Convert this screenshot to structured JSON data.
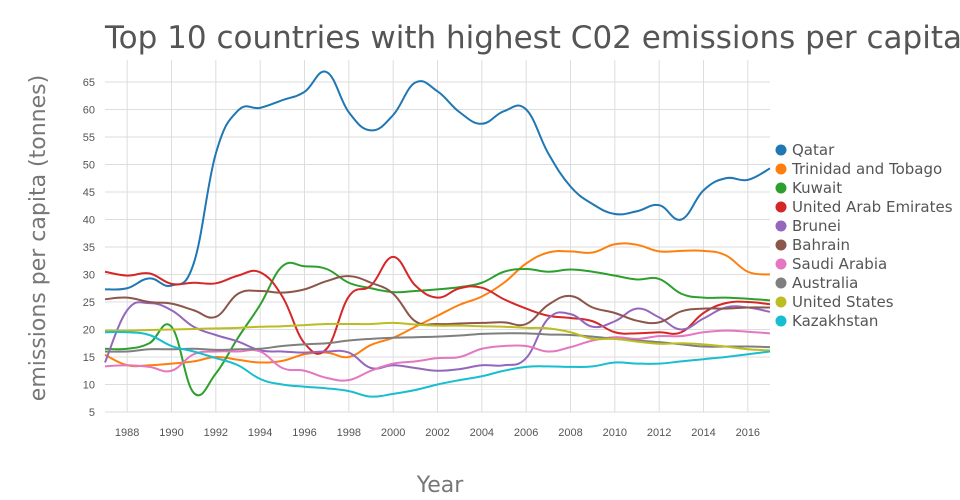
{
  "chart_data": {
    "type": "line",
    "title": "Top 10 countries with highest C02 emissions per capita",
    "xlabel": "Year",
    "ylabel": "emissions per capita (tonnes)",
    "xlim": [
      1987,
      2017
    ],
    "ylim": [
      5,
      69
    ],
    "xticks": [
      1988,
      1990,
      1992,
      1994,
      1996,
      1998,
      2000,
      2002,
      2004,
      2006,
      2008,
      2010,
      2012,
      2014,
      2016
    ],
    "yticks": [
      5,
      10,
      15,
      20,
      25,
      30,
      35,
      40,
      45,
      50,
      55,
      60,
      65
    ],
    "grid": true,
    "legend_position": "right",
    "x": [
      1987,
      1988,
      1989,
      1990,
      1991,
      1992,
      1993,
      1994,
      1995,
      1996,
      1997,
      1998,
      1999,
      2000,
      2001,
      2002,
      2003,
      2004,
      2005,
      2006,
      2007,
      2008,
      2009,
      2010,
      2011,
      2012,
      2013,
      2014,
      2015,
      2016,
      2017
    ],
    "series": [
      {
        "name": "Qatar",
        "color": "#1f77b4",
        "values": [
          27.3,
          27.5,
          29.3,
          28.0,
          32.0,
          52.0,
          59.8,
          60.3,
          61.7,
          63.2,
          66.8,
          59.5,
          56.2,
          59.0,
          64.9,
          63.3,
          59.5,
          57.4,
          59.7,
          60.0,
          52.0,
          46.0,
          42.8,
          41.0,
          41.5,
          42.6,
          40.0,
          45.3,
          47.5,
          47.2,
          49.3
        ]
      },
      {
        "name": "Trinidad and Tobago",
        "color": "#ff7f0e",
        "values": [
          15.4,
          13.5,
          13.5,
          13.8,
          14.2,
          15.0,
          14.5,
          14.0,
          14.3,
          15.5,
          15.8,
          15.0,
          17.2,
          18.5,
          20.5,
          22.5,
          24.5,
          26.0,
          28.5,
          32.0,
          34.0,
          34.2,
          34.0,
          35.5,
          35.4,
          34.2,
          34.3,
          34.3,
          33.5,
          30.5,
          30.0
        ]
      },
      {
        "name": "Kuwait",
        "color": "#2ca02c",
        "values": [
          16.5,
          16.5,
          17.5,
          20.5,
          8.5,
          12.0,
          18.5,
          24.5,
          31.5,
          31.5,
          31.0,
          28.5,
          27.5,
          26.8,
          27.0,
          27.3,
          27.7,
          28.5,
          30.5,
          31.0,
          30.5,
          30.9,
          30.5,
          29.8,
          29.1,
          29.2,
          26.5,
          25.8,
          25.8,
          25.6,
          25.3
        ]
      },
      {
        "name": "United Arab Emirates",
        "color": "#d62728",
        "values": [
          30.5,
          29.8,
          30.2,
          28.3,
          28.5,
          28.4,
          29.8,
          30.4,
          26.0,
          17.5,
          16.5,
          26.0,
          28.0,
          33.2,
          28.0,
          25.8,
          27.5,
          27.6,
          25.5,
          23.8,
          22.5,
          22.1,
          21.5,
          19.5,
          19.3,
          19.5,
          19.5,
          23.0,
          24.8,
          25.0,
          24.6
        ]
      },
      {
        "name": "Brunei",
        "color": "#9467bd",
        "values": [
          14.0,
          23.5,
          24.8,
          23.5,
          20.5,
          19.0,
          17.8,
          16.2,
          16.0,
          15.8,
          16.0,
          15.8,
          13.0,
          13.5,
          13.0,
          12.5,
          12.8,
          13.5,
          13.5,
          14.8,
          22.0,
          22.8,
          20.5,
          21.5,
          23.8,
          22.2,
          20.0,
          22.0,
          24.0,
          24.0,
          23.2
        ]
      },
      {
        "name": "Bahrain",
        "color": "#8c564b",
        "values": [
          25.5,
          25.8,
          25.0,
          24.7,
          23.5,
          22.3,
          26.5,
          27.0,
          26.7,
          27.3,
          28.8,
          29.7,
          28.5,
          26.5,
          21.5,
          21.0,
          21.1,
          21.2,
          21.3,
          21.0,
          24.5,
          26.1,
          24.0,
          23.0,
          21.6,
          21.3,
          23.3,
          23.8,
          23.8,
          24.0,
          24.0
        ]
      },
      {
        "name": "Saudi Arabia",
        "color": "#e377c2",
        "values": [
          13.3,
          13.5,
          13.2,
          12.5,
          15.5,
          16.0,
          16.0,
          16.0,
          13.0,
          12.5,
          11.2,
          10.8,
          12.5,
          13.8,
          14.2,
          14.8,
          15.0,
          16.5,
          17.0,
          17.0,
          16.0,
          16.8,
          18.0,
          18.6,
          18.3,
          18.8,
          18.8,
          19.5,
          19.8,
          19.6,
          19.3
        ]
      },
      {
        "name": "Australia",
        "color": "#7f7f7f",
        "values": [
          16.0,
          16.0,
          16.4,
          16.4,
          16.5,
          16.3,
          16.4,
          16.5,
          17.0,
          17.3,
          17.5,
          18.0,
          18.3,
          18.5,
          18.6,
          18.7,
          18.9,
          19.2,
          19.3,
          19.3,
          19.1,
          19.0,
          18.7,
          18.3,
          18.0,
          17.7,
          17.3,
          16.9,
          16.9,
          16.9,
          16.8
        ]
      },
      {
        "name": "United States",
        "color": "#bcbd22",
        "values": [
          19.8,
          19.8,
          19.9,
          20.0,
          20.1,
          20.2,
          20.3,
          20.5,
          20.6,
          20.8,
          21.0,
          21.0,
          21.0,
          21.2,
          20.9,
          20.7,
          20.7,
          20.6,
          20.5,
          20.3,
          20.2,
          19.5,
          18.3,
          18.3,
          17.8,
          17.4,
          17.5,
          17.3,
          16.9,
          16.4,
          16.2
        ]
      },
      {
        "name": "Kazakhstan",
        "color": "#17becf",
        "values": [
          19.5,
          19.5,
          19.0,
          17.0,
          16.0,
          14.8,
          13.5,
          11.0,
          10.0,
          9.6,
          9.3,
          8.8,
          7.8,
          8.3,
          9.0,
          10.0,
          10.8,
          11.5,
          12.5,
          13.2,
          13.3,
          13.2,
          13.3,
          14.0,
          13.8,
          13.8,
          14.2,
          14.6,
          15.0,
          15.5,
          16.0
        ]
      }
    ]
  }
}
